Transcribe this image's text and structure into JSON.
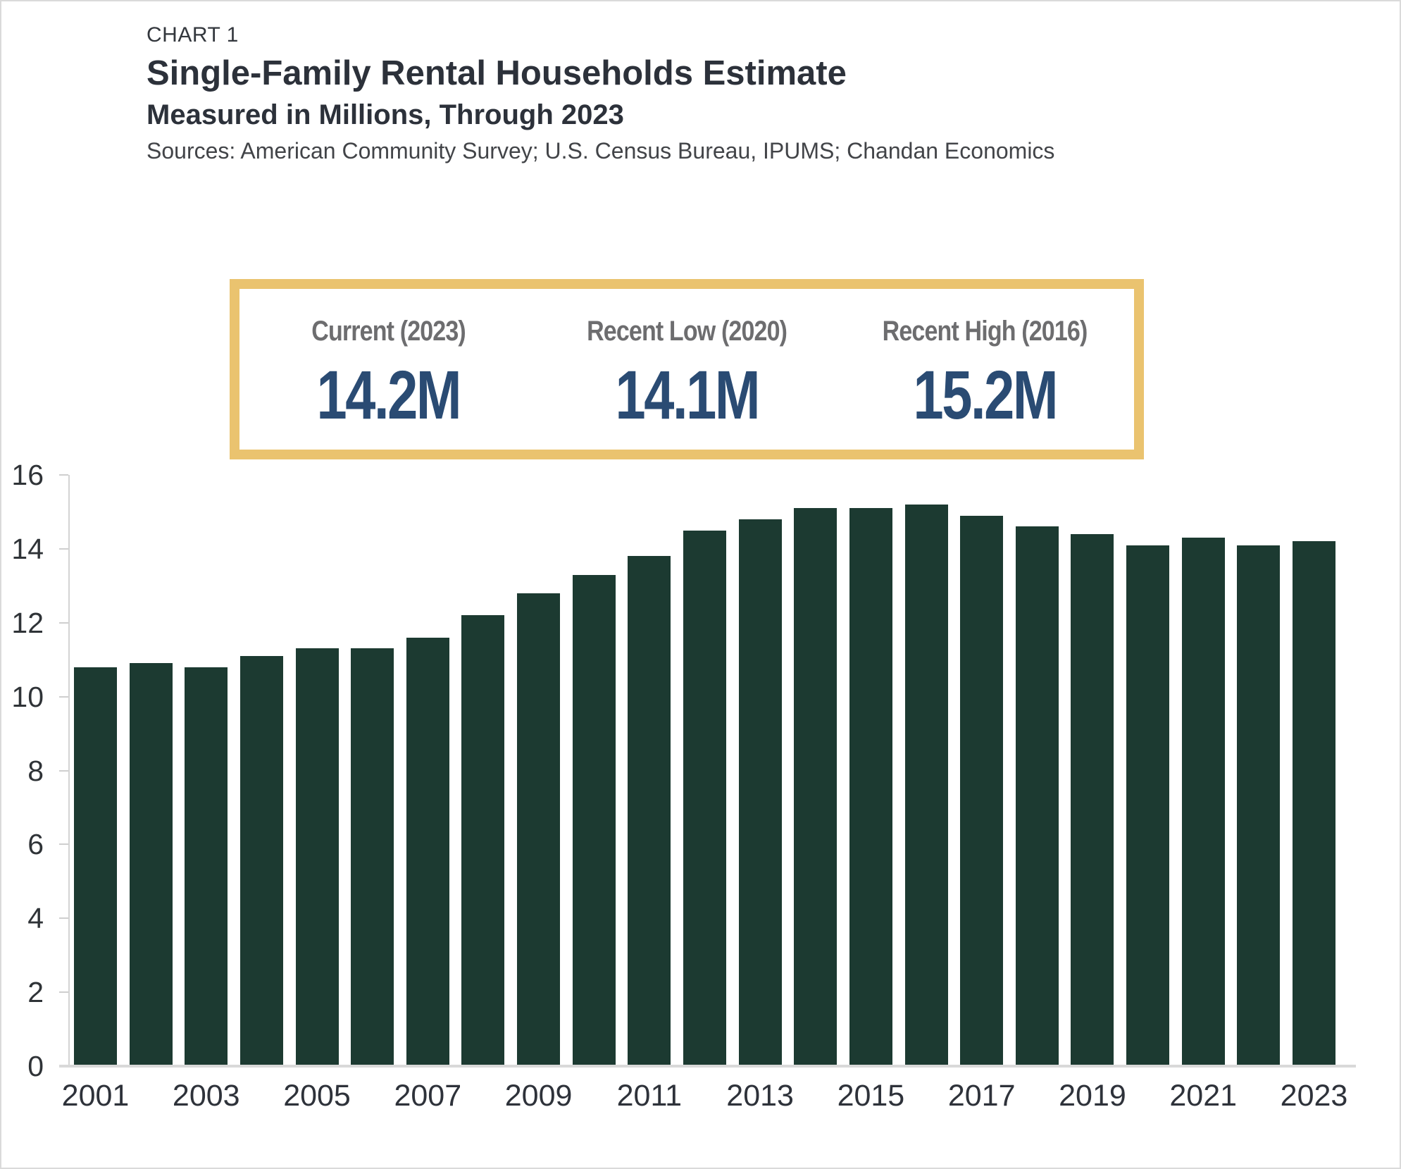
{
  "page": {
    "chart_label": "CHART 1",
    "title": "Single-Family Rental Households Estimate",
    "subtitle": "Measured in Millions, Through 2023",
    "sources": "Sources: American Community Survey; U.S. Census Bureau, IPUMS; Chandan Economics"
  },
  "callout": {
    "border_color": "#EAC36F",
    "label_color": "#6D6D6F",
    "value_color": "#2A4B73",
    "items": [
      {
        "label": "Current (2023)",
        "value": "14.2M"
      },
      {
        "label": "Recent Low (2020)",
        "value": "14.1M"
      },
      {
        "label": "Recent High (2016)",
        "value": "15.2M"
      }
    ]
  },
  "chart_data": {
    "type": "bar",
    "title": "Single-Family Rental Households Estimate",
    "subtitle": "Measured in Millions, Through 2023",
    "xlabel": "",
    "ylabel": "",
    "categories": [
      "2001",
      "2002",
      "2003",
      "2004",
      "2005",
      "2006",
      "2007",
      "2008",
      "2009",
      "2010",
      "2011",
      "2012",
      "2013",
      "2014",
      "2015",
      "2016",
      "2017",
      "2018",
      "2019",
      "2020",
      "2021",
      "2022",
      "2023"
    ],
    "values": [
      10.8,
      10.9,
      10.8,
      11.1,
      11.3,
      11.3,
      11.6,
      12.2,
      12.8,
      13.3,
      13.8,
      14.5,
      14.8,
      15.1,
      15.1,
      15.2,
      14.9,
      14.6,
      14.4,
      14.1,
      14.3,
      14.1,
      14.2
    ],
    "ylim": [
      0,
      16
    ],
    "y_ticks": [
      0,
      2,
      4,
      6,
      8,
      10,
      12,
      14,
      16
    ],
    "x_tick_labels": [
      "2001",
      "2003",
      "2005",
      "2007",
      "2009",
      "2011",
      "2013",
      "2015",
      "2017",
      "2019",
      "2021",
      "2023"
    ],
    "bar_color": "#1c3a31",
    "grid": false,
    "legend": false
  }
}
